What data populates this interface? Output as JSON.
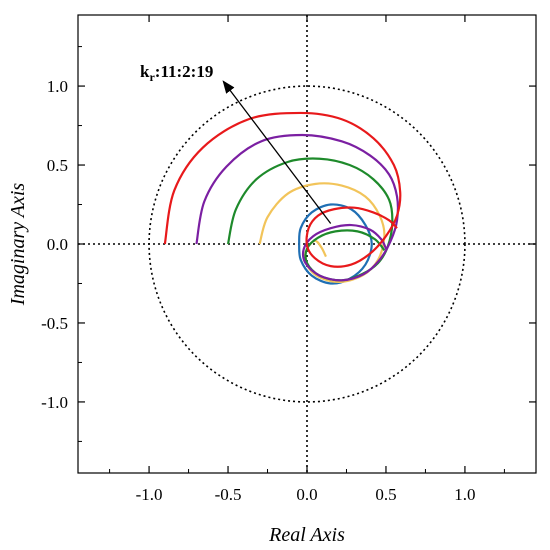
{
  "chart_data": {
    "type": "line",
    "title": "",
    "xlabel": "Real Axis",
    "ylabel": "Imaginary Axis",
    "xlim": [
      -1.45,
      1.45
    ],
    "ylim": [
      -1.45,
      1.45
    ],
    "xticks": [
      "-1.0",
      "-0.5",
      "0.0",
      "0.5",
      "1.0"
    ],
    "yticks": [
      "1.0",
      "0.5",
      "0.0",
      "-0.5",
      "-1.0"
    ],
    "xtick_values": [
      -1.0,
      -0.5,
      0.0,
      0.5,
      1.0
    ],
    "ytick_values": [
      1.0,
      0.5,
      0.0,
      -0.5,
      -1.0
    ],
    "grid": false,
    "reference_lines": [
      "x=0 dotted",
      "y=0 dotted",
      "unit circle dotted"
    ],
    "annotation": {
      "label_main": "k",
      "label_sub": "r",
      "label_rest": ":11:2:19",
      "arrow_from": [
        0.15,
        0.13
      ],
      "arrow_to": [
        -0.53,
        1.03
      ]
    },
    "series": [
      {
        "color": "#1f6fb4",
        "points": [
          [
            -0.05,
            0.0
          ],
          [
            -0.04,
            0.1
          ],
          [
            0.03,
            0.2
          ],
          [
            0.15,
            0.25
          ],
          [
            0.28,
            0.22
          ],
          [
            0.37,
            0.12
          ],
          [
            0.41,
            0.0
          ],
          [
            0.37,
            -0.13
          ],
          [
            0.27,
            -0.22
          ],
          [
            0.15,
            -0.25
          ],
          [
            0.03,
            -0.2
          ],
          [
            -0.04,
            -0.1
          ],
          [
            -0.05,
            0.0
          ]
        ]
      },
      {
        "color": "#f2c45a",
        "points": [
          [
            -0.3,
            0.0
          ],
          [
            -0.25,
            0.17
          ],
          [
            -0.12,
            0.32
          ],
          [
            0.05,
            0.38
          ],
          [
            0.22,
            0.37
          ],
          [
            0.37,
            0.3
          ],
          [
            0.46,
            0.18
          ],
          [
            0.49,
            0.05
          ],
          [
            0.45,
            -0.1
          ],
          [
            0.35,
            -0.2
          ],
          [
            0.2,
            -0.24
          ],
          [
            0.06,
            -0.2
          ],
          [
            -0.01,
            -0.11
          ],
          [
            0.0,
            -0.03
          ],
          [
            0.05,
            0.02
          ],
          [
            0.09,
            -0.02
          ],
          [
            0.12,
            -0.08
          ]
        ]
      },
      {
        "color": "#1e8a2b",
        "points": [
          [
            -0.5,
            0.0
          ],
          [
            -0.45,
            0.22
          ],
          [
            -0.32,
            0.41
          ],
          [
            -0.12,
            0.52
          ],
          [
            0.08,
            0.54
          ],
          [
            0.27,
            0.5
          ],
          [
            0.42,
            0.41
          ],
          [
            0.52,
            0.28
          ],
          [
            0.54,
            0.13
          ],
          [
            0.51,
            -0.02
          ],
          [
            0.45,
            -0.12
          ],
          [
            0.35,
            -0.19
          ],
          [
            0.22,
            -0.23
          ],
          [
            0.08,
            -0.2
          ],
          [
            0.0,
            -0.12
          ],
          [
            0.0,
            -0.03
          ],
          [
            0.07,
            0.04
          ],
          [
            0.18,
            0.08
          ],
          [
            0.32,
            0.08
          ],
          [
            0.43,
            0.03
          ],
          [
            0.49,
            -0.04
          ]
        ]
      },
      {
        "color": "#7b1fa2",
        "points": [
          [
            -0.7,
            0.0
          ],
          [
            -0.65,
            0.27
          ],
          [
            -0.51,
            0.49
          ],
          [
            -0.29,
            0.65
          ],
          [
            -0.03,
            0.69
          ],
          [
            0.22,
            0.65
          ],
          [
            0.4,
            0.56
          ],
          [
            0.52,
            0.44
          ],
          [
            0.57,
            0.3
          ],
          [
            0.57,
            0.15
          ],
          [
            0.53,
            0.02
          ],
          [
            0.46,
            -0.1
          ],
          [
            0.36,
            -0.19
          ],
          [
            0.22,
            -0.23
          ],
          [
            0.08,
            -0.2
          ],
          [
            -0.01,
            -0.12
          ],
          [
            -0.02,
            -0.03
          ],
          [
            0.04,
            0.05
          ],
          [
            0.15,
            0.1
          ],
          [
            0.28,
            0.12
          ],
          [
            0.4,
            0.09
          ],
          [
            0.47,
            0.03
          ],
          [
            0.5,
            -0.03
          ]
        ]
      },
      {
        "color": "#e8191b",
        "points": [
          [
            -0.9,
            0.0
          ],
          [
            -0.84,
            0.34
          ],
          [
            -0.66,
            0.61
          ],
          [
            -0.37,
            0.79
          ],
          [
            -0.04,
            0.83
          ],
          [
            0.22,
            0.79
          ],
          [
            0.42,
            0.67
          ],
          [
            0.55,
            0.5
          ],
          [
            0.59,
            0.33
          ],
          [
            0.57,
            0.18
          ],
          [
            0.5,
            0.05
          ],
          [
            0.4,
            -0.06
          ],
          [
            0.28,
            -0.13
          ],
          [
            0.15,
            -0.14
          ],
          [
            0.05,
            -0.09
          ],
          [
            0.0,
            -0.01
          ],
          [
            0.01,
            0.1
          ],
          [
            0.07,
            0.18
          ],
          [
            0.17,
            0.22
          ],
          [
            0.3,
            0.23
          ],
          [
            0.42,
            0.2
          ],
          [
            0.52,
            0.15
          ],
          [
            0.57,
            0.1
          ]
        ]
      }
    ]
  }
}
